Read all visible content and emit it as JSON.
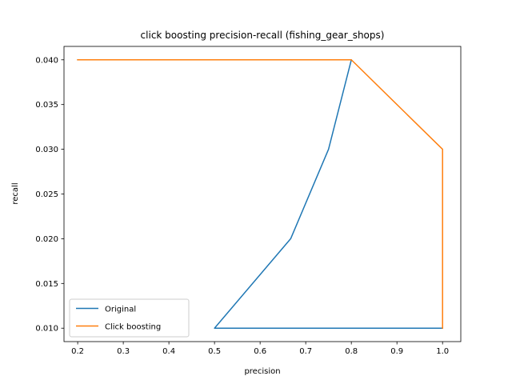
{
  "chart_data": {
    "type": "line",
    "title": "click boosting precision-recall (fishing_gear_shops)",
    "xlabel": "precision",
    "ylabel": "recall",
    "xlim": [
      0.17,
      1.04
    ],
    "ylim": [
      0.0085,
      0.0415
    ],
    "xticks": [
      0.2,
      0.3,
      0.4,
      0.5,
      0.6,
      0.7,
      0.8,
      0.9,
      1.0
    ],
    "xtick_labels": [
      "0.2",
      "0.3",
      "0.4",
      "0.5",
      "0.6",
      "0.7",
      "0.8",
      "0.9",
      "1.0"
    ],
    "yticks": [
      0.01,
      0.015,
      0.02,
      0.025,
      0.03,
      0.035,
      0.04
    ],
    "ytick_labels": [
      "0.010",
      "0.015",
      "0.020",
      "0.025",
      "0.030",
      "0.035",
      "0.040"
    ],
    "grid": false,
    "legend_position": "lower-left",
    "series": [
      {
        "name": "Original",
        "color": "#1f77b4",
        "x": [
          1.0,
          0.5,
          0.667,
          0.75,
          0.8,
          0.2
        ],
        "y": [
          0.01,
          0.01,
          0.02,
          0.03,
          0.04,
          0.04
        ]
      },
      {
        "name": "Click boosting",
        "color": "#ff7f0e",
        "x": [
          1.0,
          1.0,
          0.8,
          0.2
        ],
        "y": [
          0.01,
          0.03,
          0.04,
          0.04
        ]
      }
    ]
  }
}
